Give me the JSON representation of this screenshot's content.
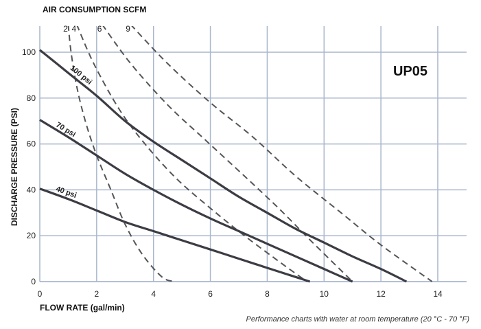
{
  "chart_data": {
    "type": "line",
    "model": "UP05",
    "top_label": "AIR CONSUMPTION SCFM",
    "xlabel": "FLOW RATE (gal/min)",
    "ylabel": "DISCHARGE PRESSURE (PSI)",
    "footnote": "Performance charts with water at room temperature (20 °C - 70 °F)",
    "xlim": [
      0,
      14
    ],
    "ylim": [
      0,
      100
    ],
    "x_ticks": [
      0,
      2,
      4,
      6,
      8,
      10,
      12,
      14
    ],
    "y_ticks": [
      0,
      20,
      40,
      60,
      80,
      100
    ],
    "grid": true,
    "series": [
      {
        "name": "100 psi",
        "style": "solid",
        "points": [
          [
            0,
            101
          ],
          [
            1,
            91
          ],
          [
            2,
            81
          ],
          [
            3,
            70
          ],
          [
            4,
            61
          ],
          [
            5,
            53
          ],
          [
            6,
            45
          ],
          [
            7,
            37
          ],
          [
            8,
            30
          ],
          [
            9,
            23
          ],
          [
            10,
            17
          ],
          [
            11,
            11
          ],
          [
            12,
            5.5
          ],
          [
            12.9,
            0
          ]
        ]
      },
      {
        "name": "70 psi",
        "style": "solid",
        "points": [
          [
            0,
            70.5
          ],
          [
            1,
            63
          ],
          [
            2,
            55
          ],
          [
            3,
            47
          ],
          [
            4,
            40
          ],
          [
            5,
            33.5
          ],
          [
            6,
            27.5
          ],
          [
            7,
            22
          ],
          [
            8,
            16.5
          ],
          [
            9,
            11
          ],
          [
            10,
            5.5
          ],
          [
            11,
            0
          ]
        ]
      },
      {
        "name": "40 psi",
        "style": "solid",
        "points": [
          [
            0,
            40.5
          ],
          [
            1,
            36
          ],
          [
            2,
            31
          ],
          [
            3,
            26
          ],
          [
            4,
            22
          ],
          [
            5,
            18
          ],
          [
            6,
            14
          ],
          [
            7,
            10
          ],
          [
            8,
            6
          ],
          [
            9,
            2
          ],
          [
            9.5,
            0
          ]
        ]
      }
    ],
    "air_consumption": [
      {
        "label": "2",
        "style": "dashed",
        "points": [
          [
            1.0,
            112
          ],
          [
            1.1,
            100
          ],
          [
            1.3,
            85
          ],
          [
            1.6,
            70
          ],
          [
            2.0,
            55
          ],
          [
            2.5,
            40
          ],
          [
            3.0,
            25
          ],
          [
            3.6,
            12
          ],
          [
            4.3,
            2
          ],
          [
            4.75,
            0
          ]
        ]
      },
      {
        "label": "4",
        "style": "dashed",
        "points": [
          [
            1.3,
            112
          ],
          [
            1.9,
            95
          ],
          [
            2.8,
            75
          ],
          [
            3.7,
            60
          ],
          [
            4.8,
            45
          ],
          [
            6.0,
            32
          ],
          [
            7.2,
            20
          ],
          [
            8.5,
            8
          ],
          [
            9.4,
            0
          ]
        ]
      },
      {
        "label": "6",
        "style": "dashed",
        "points": [
          [
            2.2,
            112
          ],
          [
            3.2,
            95
          ],
          [
            4.5,
            77
          ],
          [
            5.8,
            62
          ],
          [
            7.2,
            46
          ],
          [
            8.4,
            32
          ],
          [
            9.6,
            17
          ],
          [
            11.0,
            0
          ]
        ]
      },
      {
        "label": "9",
        "style": "dashed",
        "points": [
          [
            3.2,
            112
          ],
          [
            4.5,
            95
          ],
          [
            6.0,
            78
          ],
          [
            7.5,
            63
          ],
          [
            9.0,
            46
          ],
          [
            10.6,
            30
          ],
          [
            12.0,
            16
          ],
          [
            13.8,
            0
          ]
        ]
      }
    ]
  }
}
